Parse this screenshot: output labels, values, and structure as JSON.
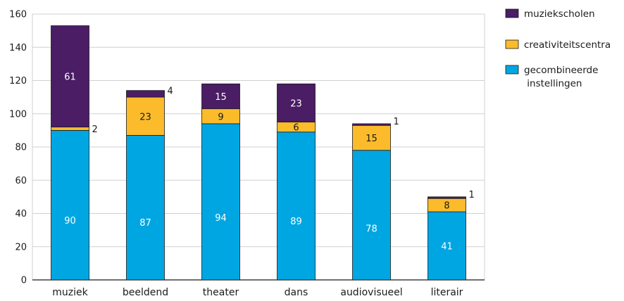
{
  "chart_data": {
    "type": "bar",
    "stacked": true,
    "categories": [
      "muziek",
      "beeldend",
      "theater",
      "dans",
      "audiovisueel",
      "literair"
    ],
    "series": [
      {
        "name": "gecombineerde instellingen",
        "values": [
          90,
          87,
          94,
          89,
          78,
          41
        ],
        "color": "#00a6e2"
      },
      {
        "name": "creativiteitscentra",
        "values": [
          2,
          23,
          9,
          6,
          15,
          8
        ],
        "color": "#fbbb2b"
      },
      {
        "name": "muziekscholen",
        "values": [
          61,
          4,
          15,
          23,
          1,
          1
        ],
        "color": "#4a1d64"
      }
    ],
    "data_labels": [
      [
        "90",
        "2",
        "61"
      ],
      [
        "87",
        "23",
        "4"
      ],
      [
        "94",
        "9",
        "15"
      ],
      [
        "89",
        "6",
        "23"
      ],
      [
        "78",
        "15",
        "1"
      ],
      [
        "41",
        "8",
        "1"
      ]
    ],
    "yticks": [
      0,
      20,
      40,
      60,
      80,
      100,
      120,
      140,
      160
    ],
    "ylim": [
      0,
      160
    ],
    "grid": true,
    "legend_position": "right",
    "legend_order": [
      "muziekscholen",
      "creativiteitscentra",
      "gecombineerde instellingen"
    ],
    "title": "",
    "xlabel": "",
    "ylabel": ""
  }
}
